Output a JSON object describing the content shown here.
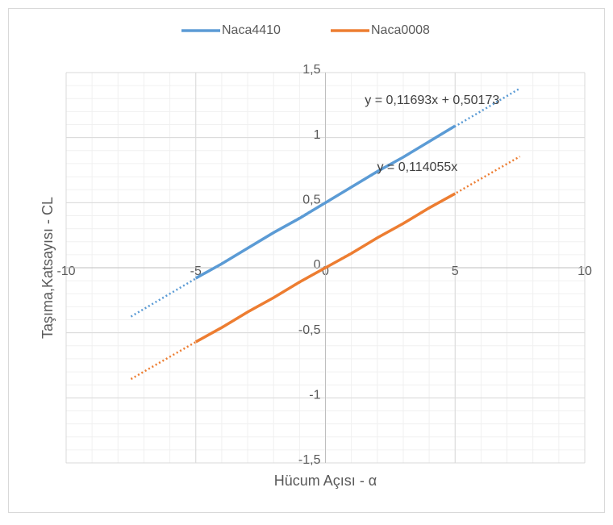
{
  "chart_data": {
    "type": "scatter",
    "x_label": "Hücum Açısı - α",
    "y_label": "Taşıma,Katsayısı - CL",
    "xlim": [
      -10,
      10
    ],
    "xticks": [
      -10,
      -5,
      0,
      5,
      10
    ],
    "ylim": [
      -1.5,
      1.5
    ],
    "yticks": [
      {
        "value": -1.5,
        "label": "-1,5"
      },
      {
        "value": -1,
        "label": "-1"
      },
      {
        "value": -0.5,
        "label": "-0,5"
      },
      0,
      {
        "value": 0.5,
        "label": "0,5"
      },
      1,
      {
        "value": 1.5,
        "label": "1,5"
      }
    ],
    "grid": true,
    "minor_grid": {
      "x_step": 1,
      "y_step": 0.1
    },
    "legend": "top",
    "x": [
      -5,
      -4,
      -3,
      -2,
      -1,
      0,
      1,
      2,
      3,
      4,
      5
    ],
    "series": [
      {
        "name": "Naca4410",
        "color": "#5b9bd5",
        "values": [
          -0.08,
          0.03,
          0.15,
          0.27,
          0.38,
          0.5,
          0.62,
          0.74,
          0.85,
          0.97,
          1.09
        ],
        "trendline": {
          "slope": 0.11693,
          "intercept": 0.50173,
          "x_range": [
            -7.5,
            7.5
          ],
          "label": "y = 0,11693x + 0,50173"
        }
      },
      {
        "name": "Naca0008",
        "color": "#ed7d31",
        "values": [
          -0.57,
          -0.46,
          -0.34,
          -0.23,
          -0.11,
          0,
          0.11,
          0.23,
          0.34,
          0.46,
          0.57
        ],
        "trendline": {
          "slope": 0.114055,
          "intercept": 0,
          "x_range": [
            -7.5,
            7.5
          ],
          "label": "y = 0,114055x"
        }
      }
    ]
  }
}
